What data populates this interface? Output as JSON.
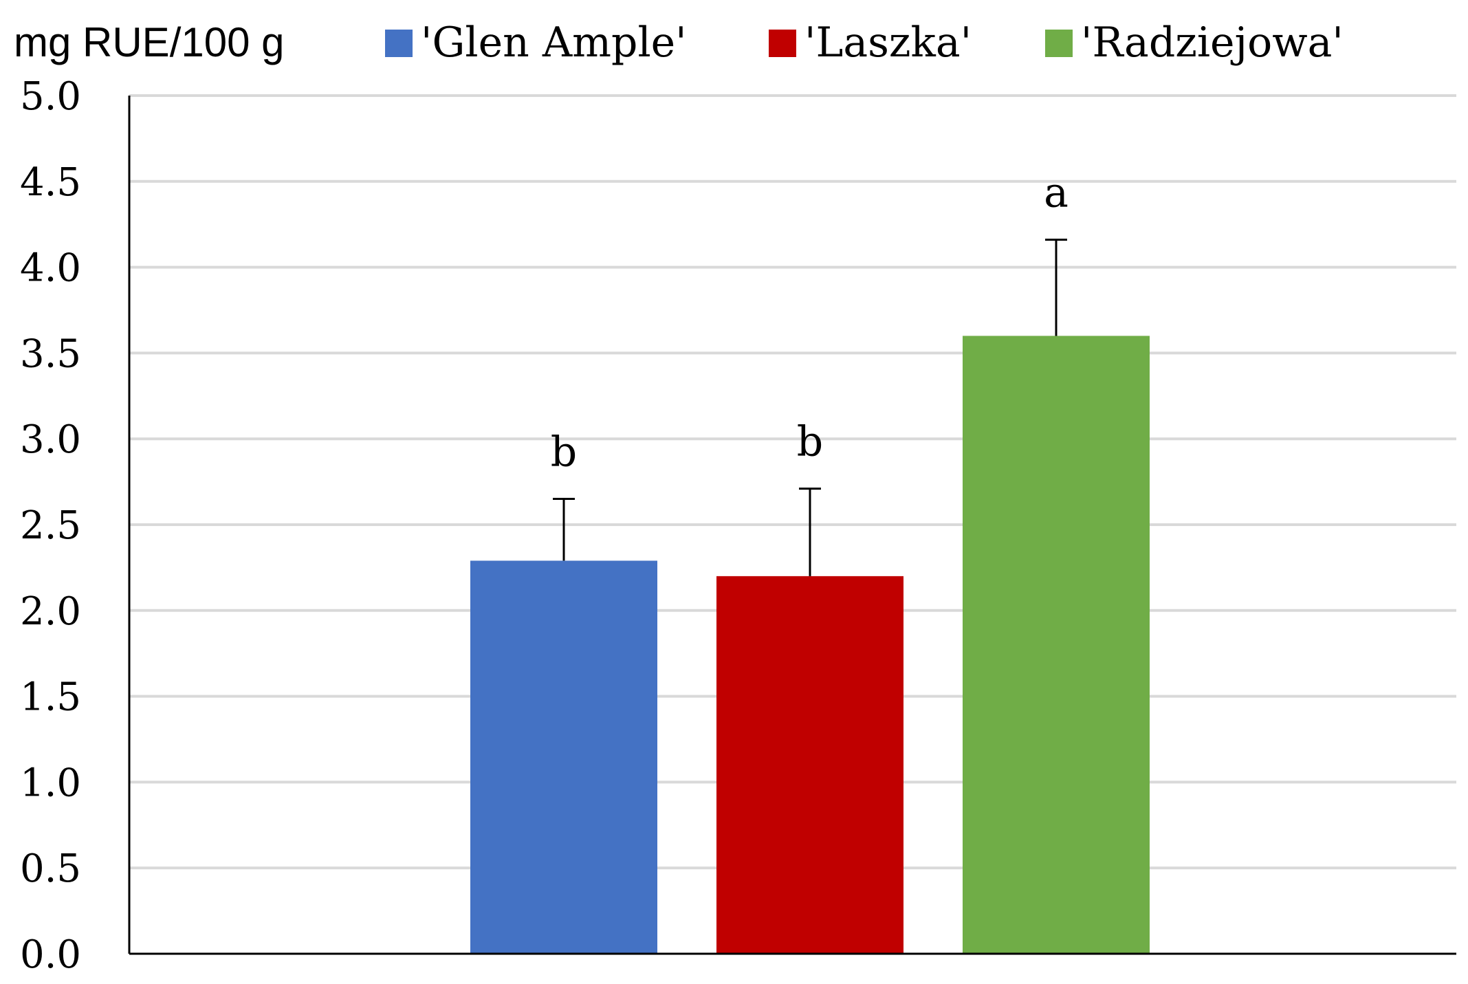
{
  "chart_data": {
    "type": "bar",
    "ylabel": "mg RUE/100 g",
    "ylim": [
      0,
      5
    ],
    "ytick_step": 0.5,
    "yticks": [
      "0.0",
      "0.5",
      "1.0",
      "1.5",
      "2.0",
      "2.5",
      "3.0",
      "3.5",
      "4.0",
      "4.5",
      "5.0"
    ],
    "grid": true,
    "legend_position": "top",
    "series": [
      {
        "name": "'Glen Ample'",
        "value": 2.29,
        "error": 0.36,
        "significance": "b",
        "color": "#4472C4"
      },
      {
        "name": "'Laszka'",
        "value": 2.2,
        "error": 0.51,
        "significance": "b",
        "color": "#C00000"
      },
      {
        "name": "'Radziejowa'",
        "value": 3.6,
        "error": 0.56,
        "significance": "a",
        "color": "#70AD47"
      }
    ]
  }
}
